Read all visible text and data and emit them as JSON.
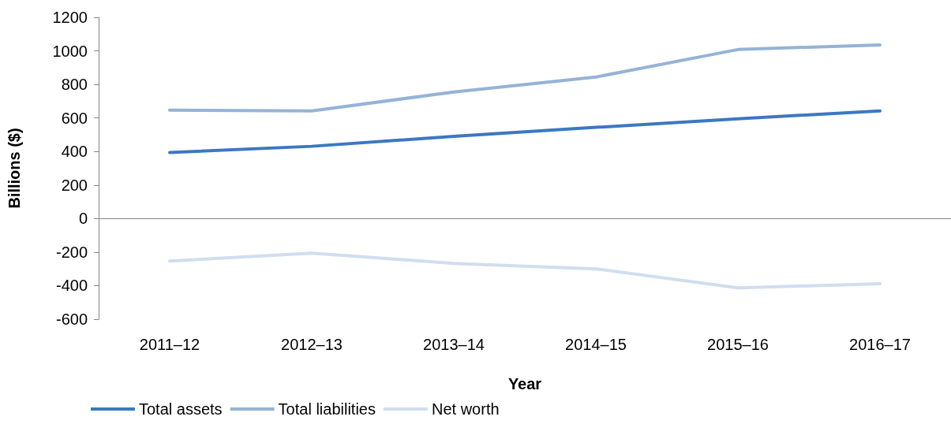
{
  "chart_data": {
    "type": "line",
    "xlabel": "Year",
    "ylabel": "Billions ($)",
    "categories": [
      "2011–12",
      "2012–13",
      "2013–14",
      "2014–15",
      "2015–16",
      "2016–17"
    ],
    "series": [
      {
        "name": "Total assets",
        "color": "#3b78c2",
        "values": [
          394,
          431,
          490,
          544,
          595,
          642
        ]
      },
      {
        "name": "Total liabilities",
        "color": "#95b3d7",
        "values": [
          647,
          642,
          755,
          844,
          1008,
          1036
        ]
      },
      {
        "name": "Net worth",
        "color": "#d0deef",
        "values": [
          -253,
          -206,
          -267,
          -300,
          -413,
          -389
        ]
      }
    ],
    "ylim": [
      -600,
      1200
    ],
    "yticks": [
      -600,
      -400,
      -200,
      0,
      200,
      400,
      600,
      800,
      1000,
      1200
    ],
    "ref_lines": [
      {
        "axis": "y",
        "value": 0,
        "color": "#868686"
      }
    ],
    "grid": false,
    "legend": "bottom left",
    "marker": "none",
    "line_style": "solid"
  }
}
